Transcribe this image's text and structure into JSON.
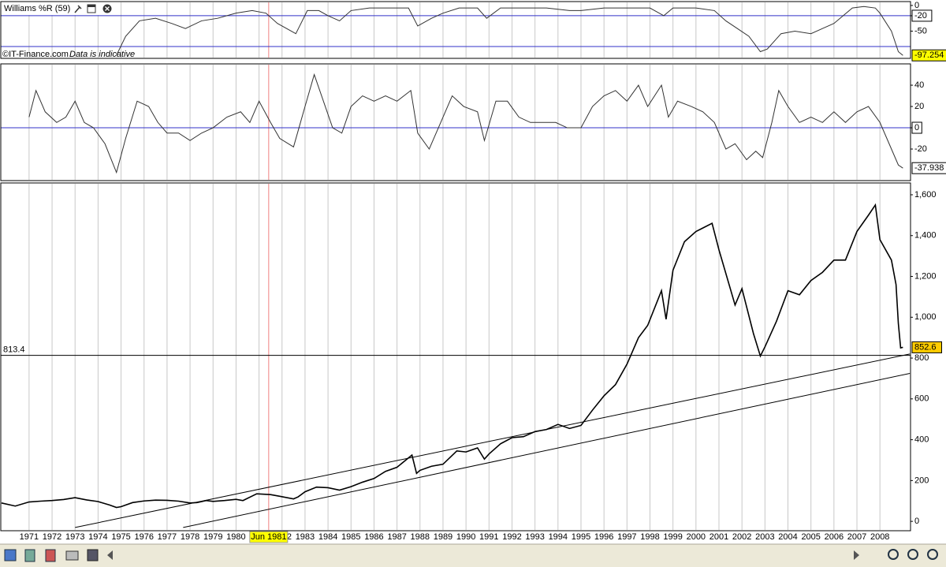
{
  "chart_data": [
    {
      "type": "line",
      "title": "Williams %R (59)",
      "source": "©IT-Finance.com",
      "note": "Data is indicative",
      "xlim": [
        1969.77,
        2009.33
      ],
      "ylim": [
        -101.5,
        6
      ],
      "yticks": [
        0,
        -20,
        -50
      ],
      "levels": [
        -20,
        -80
      ],
      "level_color": "#3232c8",
      "last_value_color": "#ffff00",
      "series": [
        {
          "name": "Williams %R",
          "color": "#333333",
          "x": [
            1974.8,
            1975.2,
            1975.8,
            1976.5,
            1977.2,
            1977.8,
            1978.5,
            1979.2,
            1980.0,
            1980.7,
            1981.3,
            1981.8,
            1982.6,
            1983.1,
            1983.6,
            1984.0,
            1984.5,
            1985.0,
            1985.8,
            1986.5,
            1987.5,
            1987.9,
            1988.5,
            1989.0,
            1989.7,
            1990.5,
            1990.9,
            1991.5,
            1992.5,
            1993.5,
            1994.5,
            1995.0,
            1996.0,
            1997.0,
            1998.0,
            1998.6,
            1999.0,
            2000.0,
            2000.8,
            2001.3,
            2001.8,
            2002.3,
            2002.8,
            2003.1,
            2003.7,
            2004.3,
            2005.0,
            2005.5,
            2006.0,
            2006.8,
            2007.3,
            2007.8,
            2008.0,
            2008.5,
            2008.8,
            2009.0
          ],
          "values": [
            -97,
            -60,
            -30,
            -25,
            -35,
            -45,
            -30,
            -25,
            -15,
            -10,
            -15,
            -35,
            -55,
            -10,
            -10,
            -20,
            -30,
            -10,
            -5,
            -5,
            -5,
            -40,
            -25,
            -15,
            -5,
            -5,
            -25,
            -5,
            -5,
            -5,
            -10,
            -10,
            -5,
            -5,
            -5,
            -20,
            -5,
            -5,
            -10,
            -30,
            -45,
            -60,
            -90,
            -85,
            -55,
            -50,
            -55,
            -45,
            -35,
            -5,
            -2,
            -5,
            -15,
            -50,
            -90,
            -97.254
          ]
        }
      ]
    },
    {
      "type": "line",
      "xlim": [
        1969.77,
        2009.33
      ],
      "ylim": [
        -48.9,
        59.3
      ],
      "yticks": [
        40,
        20,
        0,
        -20
      ],
      "levels": [
        0
      ],
      "level_color": "#3232c8",
      "last_value_color": "#ffffff",
      "series": [
        {
          "name": "Oscillator",
          "color": "#333333",
          "x": [
            1971.0,
            1971.3,
            1971.7,
            1972.2,
            1972.6,
            1973.0,
            1973.4,
            1973.8,
            1974.3,
            1974.8,
            1975.2,
            1975.7,
            1976.2,
            1976.6,
            1977.0,
            1977.5,
            1978.0,
            1978.5,
            1979.0,
            1979.6,
            1980.2,
            1980.6,
            1981.0,
            1981.5,
            1981.9,
            1982.5,
            1983.0,
            1983.4,
            1983.8,
            1984.2,
            1984.6,
            1985.0,
            1985.5,
            1986.0,
            1986.5,
            1987.0,
            1987.6,
            1987.9,
            1988.4,
            1988.9,
            1989.4,
            1989.9,
            1990.5,
            1990.8,
            1991.3,
            1991.8,
            1992.3,
            1992.8,
            1993.3,
            1993.9,
            1994.4,
            1995.0,
            1995.5,
            1996.0,
            1996.5,
            1997.0,
            1997.5,
            1997.9,
            1998.5,
            1998.8,
            1999.2,
            1999.8,
            2000.3,
            2000.8,
            2001.3,
            2001.7,
            2002.2,
            2002.6,
            2002.9,
            2003.3,
            2003.6,
            2004.0,
            2004.5,
            2005.0,
            2005.5,
            2006.0,
            2006.5,
            2007.0,
            2007.5,
            2008.0,
            2008.4,
            2008.8,
            2009.0
          ],
          "values": [
            10,
            35,
            15,
            5,
            10,
            25,
            5,
            0,
            -15,
            -42,
            -10,
            25,
            20,
            5,
            -5,
            -5,
            -12,
            -5,
            0,
            10,
            15,
            5,
            25,
            5,
            -10,
            -18,
            20,
            50,
            25,
            0,
            -5,
            20,
            30,
            25,
            30,
            25,
            35,
            -5,
            -20,
            5,
            30,
            20,
            15,
            -12,
            25,
            25,
            10,
            5,
            5,
            5,
            0,
            0,
            20,
            30,
            35,
            25,
            40,
            20,
            40,
            10,
            25,
            20,
            15,
            5,
            -20,
            -15,
            -30,
            -22,
            -28,
            5,
            35,
            20,
            5,
            10,
            5,
            15,
            5,
            15,
            20,
            5,
            -15,
            -35,
            -37.938
          ]
        }
      ]
    },
    {
      "type": "line",
      "xlim": [
        1969.77,
        2009.33
      ],
      "ylim": [
        -42,
        1654
      ],
      "yticks": [
        0,
        200,
        400,
        600,
        800,
        {
          "value": 1000,
          "label": "1,000"
        },
        {
          "value": 1200,
          "label": "1,200"
        },
        {
          "value": 1400,
          "label": "1,400"
        },
        {
          "value": 1600,
          "label": "1,600"
        }
      ],
      "xticks": [
        1971,
        1972,
        1973,
        1974,
        1975,
        1976,
        1977,
        1978,
        1979,
        1980,
        1981,
        1982,
        1983,
        1984,
        1985,
        1986,
        1987,
        1988,
        1989,
        1990,
        1991,
        1992,
        1993,
        1994,
        1995,
        1996,
        1997,
        1998,
        1999,
        2000,
        2001,
        2002,
        2003,
        2004,
        2005,
        2006,
        2007,
        2008
      ],
      "grid": true,
      "hline": 813.4,
      "last_value_color": "#ffcc00",
      "crosshair": {
        "x": 1981.42,
        "label": "Jun 1981",
        "color": "#f08080"
      },
      "trendlines": [
        {
          "x": [
            1973.0,
            2009.3
          ],
          "values": [
            -30,
            820
          ]
        },
        {
          "x": [
            1977.7,
            2009.3
          ],
          "values": [
            -30,
            725
          ]
        }
      ],
      "series": [
        {
          "name": "Price",
          "color": "#000000",
          "x": [
            1969.8,
            1970.4,
            1971.0,
            1971.5,
            1972.0,
            1972.5,
            1973.0,
            1973.5,
            1974.0,
            1974.5,
            1974.8,
            1975.0,
            1975.5,
            1976.0,
            1976.5,
            1977.0,
            1977.5,
            1978.0,
            1978.3,
            1978.7,
            1979.0,
            1979.5,
            1980.0,
            1980.3,
            1980.9,
            1981.5,
            1981.9,
            1982.5,
            1982.7,
            1983.0,
            1983.5,
            1984.0,
            1984.5,
            1985.0,
            1985.5,
            1986.0,
            1986.5,
            1987.0,
            1987.65,
            1987.85,
            1988.0,
            1988.5,
            1989.0,
            1989.6,
            1990.0,
            1990.5,
            1990.8,
            1991.0,
            1991.5,
            1992.0,
            1992.5,
            1993.0,
            1993.5,
            1994.0,
            1994.5,
            1995.0,
            1995.5,
            1996.0,
            1996.5,
            1997.0,
            1997.5,
            1997.9,
            1998.5,
            1998.7,
            1999.0,
            1999.5,
            2000.0,
            2000.7,
            2001.0,
            2001.7,
            2002.0,
            2002.5,
            2002.8,
            2003.0,
            2003.5,
            2004.0,
            2004.5,
            2005.0,
            2005.5,
            2006.0,
            2006.5,
            2007.0,
            2007.5,
            2007.8,
            2008.0,
            2008.5,
            2008.7,
            2008.8,
            2008.9,
            2009.0
          ],
          "values": [
            90,
            75,
            95,
            99,
            102,
            107,
            116,
            105,
            97,
            80,
            68,
            72,
            92,
            100,
            104,
            103,
            99,
            90,
            92,
            102,
            98,
            102,
            108,
            102,
            135,
            131,
            123,
            110,
            120,
            145,
            168,
            165,
            153,
            170,
            192,
            210,
            245,
            265,
            325,
            235,
            250,
            270,
            280,
            345,
            340,
            360,
            305,
            330,
            380,
            410,
            415,
            440,
            450,
            475,
            455,
            470,
            545,
            615,
            670,
            770,
            900,
            960,
            1130,
            990,
            1230,
            1370,
            1420,
            1460,
            1330,
            1060,
            1140,
            920,
            810,
            855,
            980,
            1130,
            1110,
            1180,
            1220,
            1280,
            1280,
            1420,
            1500,
            1550,
            1380,
            1280,
            1160,
            970,
            850,
            852.6
          ]
        }
      ]
    }
  ]
}
